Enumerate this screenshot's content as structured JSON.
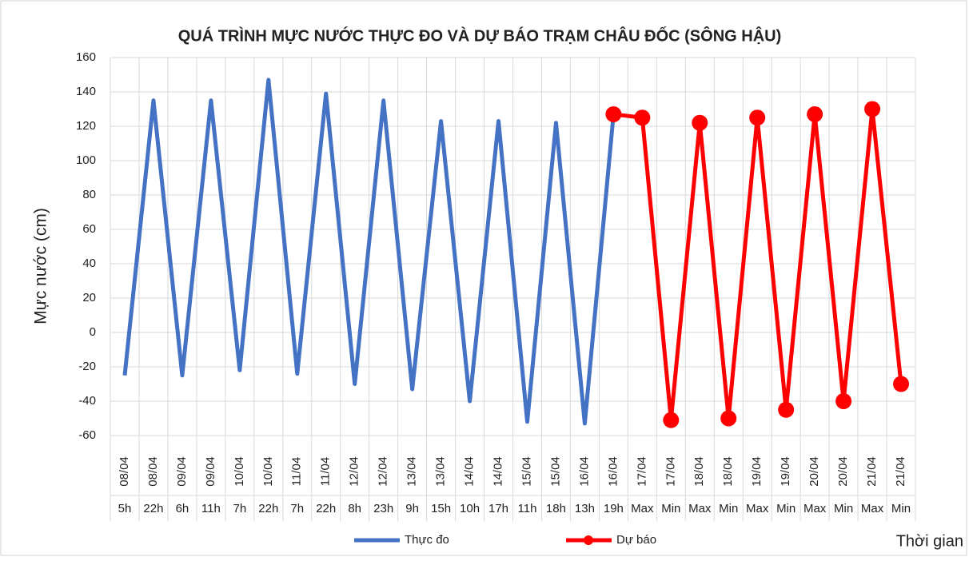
{
  "chart_data": {
    "type": "line",
    "title": "QUÁ TRÌNH MỰC NƯỚC THỰC ĐO VÀ DỰ BÁO TRẠM CHÂU ĐỐC (SÔNG HẬU)",
    "y_label": "Mực nước (cm)",
    "x_label": "Thời gian",
    "categories": [
      "08/04",
      "08/04",
      "09/04",
      "09/04",
      "10/04",
      "10/04",
      "11/04",
      "11/04",
      "12/04",
      "12/04",
      "13/04",
      "13/04",
      "14/04",
      "14/04",
      "15/04",
      "15/04",
      "16/04",
      "16/04",
      "17/04",
      "17/04",
      "18/04",
      "18/04",
      "19/04",
      "19/04",
      "20/04",
      "20/04",
      "21/04",
      "21/04"
    ],
    "sub_categories": [
      "5h",
      "22h",
      "6h",
      "11h",
      "7h",
      "22h",
      "7h",
      "22h",
      "8h",
      "23h",
      "9h",
      "15h",
      "10h",
      "17h",
      "11h",
      "18h",
      "13h",
      "19h",
      "Max",
      "Min",
      "Max",
      "Min",
      "Max",
      "Min",
      "Max",
      "Min",
      "Max",
      "Min"
    ],
    "series": [
      {
        "name": "Thực đo",
        "color": "#4472c4",
        "marker": false,
        "values": [
          -25,
          135,
          -25,
          135,
          -22,
          147,
          -24,
          139,
          -30,
          135,
          -33,
          123,
          -40,
          123,
          -52,
          122,
          -53,
          127,
          null,
          null,
          null,
          null,
          null,
          null,
          null,
          null,
          null,
          null
        ]
      },
      {
        "name": "Dự báo",
        "color": "#ff0000",
        "marker": true,
        "values": [
          null,
          null,
          null,
          null,
          null,
          null,
          null,
          null,
          null,
          null,
          null,
          null,
          null,
          null,
          null,
          null,
          null,
          127,
          125,
          -51,
          122,
          -50,
          125,
          -45,
          127,
          -40,
          130,
          -30
        ]
      }
    ],
    "ylim": [
      -60,
      160
    ],
    "yticks": [
      -60,
      -40,
      -20,
      0,
      20,
      40,
      60,
      80,
      100,
      120,
      140,
      160
    ],
    "grid": true,
    "legend": "bottom"
  }
}
